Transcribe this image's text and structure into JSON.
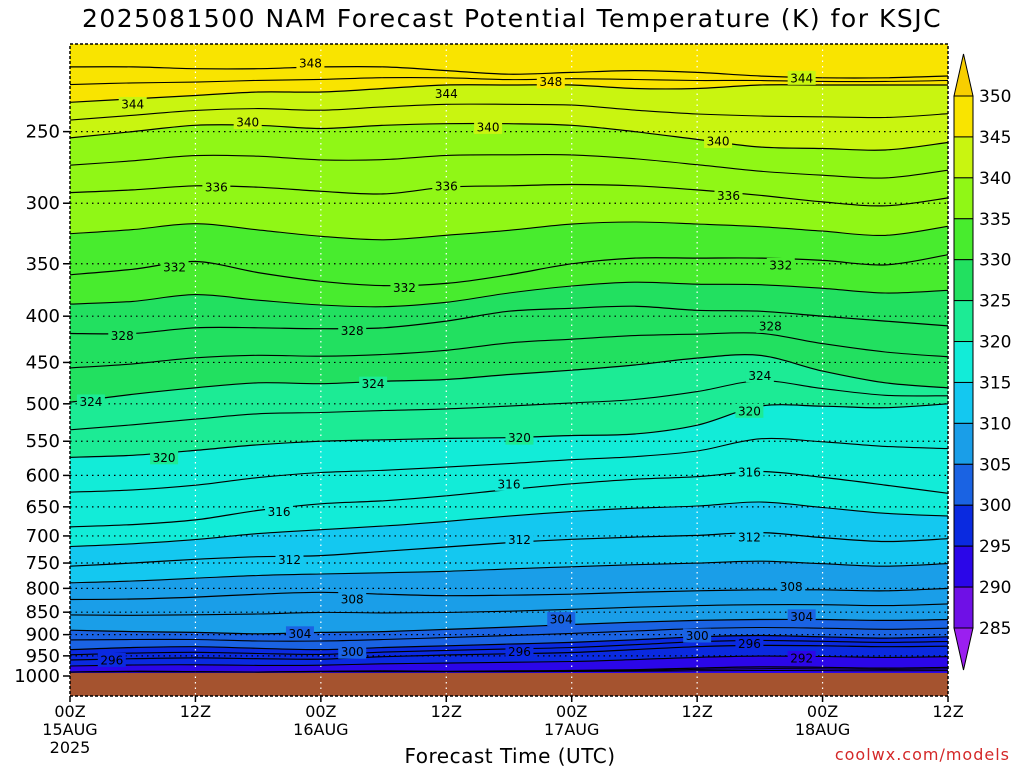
{
  "title": "2025081500 NAM Forecast Potential Temperature (K) for KSJC",
  "xlabel": "Forecast Time (UTC)",
  "credit": "coolwx.com/models",
  "chart_data": {
    "type": "heatmap",
    "title": "2025081500 NAM Forecast Potential Temperature (K) for KSJC",
    "xlabel": "Forecast Time (UTC)",
    "ylabel": "",
    "x_range_hours": [
      0,
      84
    ],
    "y_range_hPa": [
      1000,
      200
    ],
    "y_scale": "log",
    "y_ticks": [
      250,
      300,
      350,
      400,
      450,
      500,
      550,
      600,
      650,
      700,
      750,
      800,
      850,
      900,
      950,
      1000
    ],
    "x_ticks": [
      {
        "hour": 0,
        "lines": [
          "00Z",
          "15AUG",
          "2025"
        ]
      },
      {
        "hour": 12,
        "lines": [
          "12Z"
        ]
      },
      {
        "hour": 24,
        "lines": [
          "00Z",
          "16AUG"
        ]
      },
      {
        "hour": 36,
        "lines": [
          "12Z"
        ]
      },
      {
        "hour": 48,
        "lines": [
          "00Z",
          "17AUG"
        ]
      },
      {
        "hour": 60,
        "lines": [
          "12Z"
        ]
      },
      {
        "hour": 72,
        "lines": [
          "00Z",
          "18AUG"
        ]
      },
      {
        "hour": 84,
        "lines": [
          "12Z"
        ]
      }
    ],
    "grid": true,
    "colorbar": {
      "levels": [
        285,
        290,
        295,
        300,
        305,
        310,
        315,
        320,
        325,
        330,
        335,
        340,
        345,
        350
      ],
      "colors": [
        "#9b1ff0",
        "#6f10e6",
        "#2b06e8",
        "#0a2ae0",
        "#1a63e3",
        "#1a9ee8",
        "#14c8f0",
        "#12ecd8",
        "#1ceb95",
        "#22e060",
        "#48ec2e",
        "#90f716",
        "#c9f510",
        "#f9e400",
        "#f8ce00"
      ]
    },
    "contour_interval": 2,
    "series": [
      {
        "name": "292",
        "values": [
          [
            0,
            990
          ],
          [
            6,
            988
          ],
          [
            12,
            989
          ],
          [
            18,
            990
          ],
          [
            24,
            988
          ],
          [
            30,
            987
          ],
          [
            36,
            988
          ],
          [
            42,
            987
          ],
          [
            48,
            986
          ],
          [
            54,
            984
          ],
          [
            60,
            980
          ],
          [
            66,
            977
          ],
          [
            72,
            978
          ],
          [
            78,
            980
          ],
          [
            84,
            978
          ]
        ]
      },
      {
        "name": "296",
        "values": [
          [
            0,
            960
          ],
          [
            6,
            957
          ],
          [
            12,
            955
          ],
          [
            18,
            957
          ],
          [
            24,
            958
          ],
          [
            30,
            952
          ],
          [
            36,
            948
          ],
          [
            42,
            945
          ],
          [
            48,
            942
          ],
          [
            54,
            935
          ],
          [
            60,
            928
          ],
          [
            66,
            925
          ],
          [
            72,
            926
          ],
          [
            78,
            928
          ],
          [
            84,
            927
          ]
        ]
      },
      {
        "name": "300",
        "values": [
          [
            0,
            935
          ],
          [
            6,
            930
          ],
          [
            12,
            928
          ],
          [
            18,
            932
          ],
          [
            24,
            935
          ],
          [
            30,
            930
          ],
          [
            36,
            926
          ],
          [
            42,
            922
          ],
          [
            48,
            918
          ],
          [
            54,
            912
          ],
          [
            60,
            905
          ],
          [
            66,
            902
          ],
          [
            72,
            905
          ],
          [
            78,
            908
          ],
          [
            84,
            905
          ]
        ]
      },
      {
        "name": "304",
        "values": [
          [
            0,
            890
          ],
          [
            6,
            893
          ],
          [
            12,
            895
          ],
          [
            18,
            898
          ],
          [
            24,
            895
          ],
          [
            30,
            893
          ],
          [
            36,
            888
          ],
          [
            42,
            883
          ],
          [
            48,
            877
          ],
          [
            54,
            872
          ],
          [
            60,
            868
          ],
          [
            66,
            866
          ],
          [
            72,
            866
          ],
          [
            78,
            868
          ],
          [
            84,
            866
          ]
        ]
      },
      {
        "name": "308",
        "values": [
          [
            0,
            823
          ],
          [
            6,
            822
          ],
          [
            12,
            818
          ],
          [
            18,
            812
          ],
          [
            24,
            808
          ],
          [
            30,
            812
          ],
          [
            36,
            815
          ],
          [
            42,
            814
          ],
          [
            48,
            812
          ],
          [
            54,
            808
          ],
          [
            60,
            805
          ],
          [
            66,
            803
          ],
          [
            72,
            803
          ],
          [
            78,
            805
          ],
          [
            84,
            800
          ]
        ]
      },
      {
        "name": "312",
        "values": [
          [
            0,
            756
          ],
          [
            6,
            750
          ],
          [
            12,
            743
          ],
          [
            18,
            738
          ],
          [
            24,
            736
          ],
          [
            30,
            728
          ],
          [
            36,
            720
          ],
          [
            42,
            712
          ],
          [
            48,
            706
          ],
          [
            54,
            702
          ],
          [
            60,
            699
          ],
          [
            66,
            694
          ],
          [
            72,
            703
          ],
          [
            78,
            710
          ],
          [
            84,
            705
          ]
        ]
      },
      {
        "name": "316",
        "values": [
          [
            0,
            684
          ],
          [
            6,
            680
          ],
          [
            12,
            672
          ],
          [
            18,
            656
          ],
          [
            24,
            645
          ],
          [
            30,
            640
          ],
          [
            36,
            632
          ],
          [
            42,
            622
          ],
          [
            48,
            613
          ],
          [
            54,
            606
          ],
          [
            60,
            602
          ],
          [
            66,
            594
          ],
          [
            72,
            603
          ],
          [
            78,
            615
          ],
          [
            84,
            628
          ]
        ]
      },
      {
        "name": "320",
        "values": [
          [
            0,
            573
          ],
          [
            6,
            570
          ],
          [
            12,
            563
          ],
          [
            18,
            555
          ],
          [
            24,
            550
          ],
          [
            30,
            548
          ],
          [
            36,
            546
          ],
          [
            42,
            545
          ],
          [
            48,
            542
          ],
          [
            54,
            540
          ],
          [
            60,
            528
          ],
          [
            66,
            503
          ],
          [
            72,
            503
          ],
          [
            78,
            505
          ],
          [
            84,
            500
          ]
        ]
      },
      {
        "name": "324",
        "values": [
          [
            0,
            498
          ],
          [
            6,
            488
          ],
          [
            12,
            480
          ],
          [
            18,
            474
          ],
          [
            24,
            475
          ],
          [
            30,
            472
          ],
          [
            36,
            470
          ],
          [
            42,
            464
          ],
          [
            48,
            459
          ],
          [
            54,
            453
          ],
          [
            60,
            445
          ],
          [
            66,
            442
          ],
          [
            72,
            460
          ],
          [
            78,
            474
          ],
          [
            84,
            480
          ]
        ]
      },
      {
        "name": "328",
        "values": [
          [
            0,
            418
          ],
          [
            6,
            418
          ],
          [
            12,
            412
          ],
          [
            18,
            412
          ],
          [
            24,
            413
          ],
          [
            30,
            412
          ],
          [
            36,
            405
          ],
          [
            42,
            395
          ],
          [
            48,
            392
          ],
          [
            54,
            390
          ],
          [
            60,
            394
          ],
          [
            66,
            395
          ],
          [
            72,
            400
          ],
          [
            78,
            405
          ],
          [
            84,
            410
          ]
        ]
      },
      {
        "name": "332",
        "values": [
          [
            0,
            360
          ],
          [
            6,
            355
          ],
          [
            12,
            348
          ],
          [
            18,
            358
          ],
          [
            24,
            366
          ],
          [
            30,
            370
          ],
          [
            36,
            368
          ],
          [
            42,
            360
          ],
          [
            48,
            350
          ],
          [
            54,
            345
          ],
          [
            60,
            345
          ],
          [
            66,
            345
          ],
          [
            72,
            347
          ],
          [
            78,
            351
          ],
          [
            84,
            342
          ]
        ]
      },
      {
        "name": "336",
        "values": [
          [
            0,
            292
          ],
          [
            6,
            290
          ],
          [
            12,
            287
          ],
          [
            18,
            288
          ],
          [
            24,
            291
          ],
          [
            30,
            293
          ],
          [
            36,
            288
          ],
          [
            42,
            287
          ],
          [
            48,
            286
          ],
          [
            54,
            287
          ],
          [
            60,
            290
          ],
          [
            66,
            294
          ],
          [
            72,
            299
          ],
          [
            78,
            302
          ],
          [
            84,
            296
          ]
        ]
      },
      {
        "name": "340",
        "values": [
          [
            0,
            254
          ],
          [
            6,
            250
          ],
          [
            12,
            246
          ],
          [
            18,
            246
          ],
          [
            24,
            248
          ],
          [
            30,
            246
          ],
          [
            36,
            245
          ],
          [
            42,
            245
          ],
          [
            48,
            246
          ],
          [
            54,
            250
          ],
          [
            60,
            255
          ],
          [
            66,
            260
          ],
          [
            72,
            261
          ],
          [
            78,
            262
          ],
          [
            84,
            257
          ]
        ]
      },
      {
        "name": "344",
        "values": [
          [
            0,
            232
          ],
          [
            6,
            230
          ],
          [
            12,
            228
          ],
          [
            18,
            226
          ],
          [
            24,
            226
          ],
          [
            30,
            224
          ],
          [
            36,
            222
          ],
          [
            42,
            222
          ],
          [
            48,
            222
          ],
          [
            54,
            224
          ],
          [
            60,
            224
          ],
          [
            66,
            222
          ],
          [
            72,
            222
          ],
          [
            78,
            222
          ],
          [
            84,
            222
          ]
        ]
      },
      {
        "name": "348",
        "values": [
          [
            0,
            212
          ],
          [
            6,
            212
          ],
          [
            12,
            213
          ],
          [
            18,
            213
          ],
          [
            24,
            212
          ],
          [
            30,
            212
          ],
          [
            36,
            214
          ],
          [
            42,
            216
          ],
          [
            48,
            215
          ],
          [
            54,
            214
          ],
          [
            60,
            215
          ],
          [
            66,
            217
          ],
          [
            72,
            218
          ],
          [
            78,
            218
          ],
          [
            84,
            217
          ]
        ]
      }
    ],
    "contour_labels": [
      {
        "text": "348",
        "hour": 23,
        "p": 210
      },
      {
        "text": "348",
        "hour": 46,
        "p": 220
      },
      {
        "text": "344",
        "hour": 6,
        "p": 233
      },
      {
        "text": "344",
        "hour": 36,
        "p": 227
      },
      {
        "text": "344",
        "hour": 70,
        "p": 218
      },
      {
        "text": "340",
        "hour": 17,
        "p": 244
      },
      {
        "text": "340",
        "hour": 40,
        "p": 247
      },
      {
        "text": "340",
        "hour": 62,
        "p": 256
      },
      {
        "text": "336",
        "hour": 14,
        "p": 288
      },
      {
        "text": "336",
        "hour": 36,
        "p": 287
      },
      {
        "text": "336",
        "hour": 63,
        "p": 294
      },
      {
        "text": "332",
        "hour": 10,
        "p": 353
      },
      {
        "text": "332",
        "hour": 32,
        "p": 372
      },
      {
        "text": "332",
        "hour": 68,
        "p": 351
      },
      {
        "text": "328",
        "hour": 5,
        "p": 420
      },
      {
        "text": "328",
        "hour": 27,
        "p": 415
      },
      {
        "text": "328",
        "hour": 67,
        "p": 410
      },
      {
        "text": "324",
        "hour": 2,
        "p": 497
      },
      {
        "text": "324",
        "hour": 29,
        "p": 475
      },
      {
        "text": "324",
        "hour": 66,
        "p": 465
      },
      {
        "text": "320",
        "hour": 9,
        "p": 573
      },
      {
        "text": "320",
        "hour": 43,
        "p": 545
      },
      {
        "text": "320",
        "hour": 65,
        "p": 509
      },
      {
        "text": "316",
        "hour": 20,
        "p": 658
      },
      {
        "text": "316",
        "hour": 42,
        "p": 613
      },
      {
        "text": "316",
        "hour": 65,
        "p": 595
      },
      {
        "text": "312",
        "hour": 21,
        "p": 743
      },
      {
        "text": "312",
        "hour": 43,
        "p": 706
      },
      {
        "text": "312",
        "hour": 65,
        "p": 702
      },
      {
        "text": "308",
        "hour": 27,
        "p": 822
      },
      {
        "text": "308",
        "hour": 69,
        "p": 796
      },
      {
        "text": "304",
        "hour": 22,
        "p": 897
      },
      {
        "text": "304",
        "hour": 47,
        "p": 865
      },
      {
        "text": "304",
        "hour": 70,
        "p": 859
      },
      {
        "text": "300",
        "hour": 27,
        "p": 940
      },
      {
        "text": "300",
        "hour": 60,
        "p": 902
      },
      {
        "text": "296",
        "hour": 4,
        "p": 960
      },
      {
        "text": "296",
        "hour": 43,
        "p": 940
      },
      {
        "text": "296",
        "hour": 65,
        "p": 921
      },
      {
        "text": "292",
        "hour": 70,
        "p": 955
      }
    ]
  }
}
